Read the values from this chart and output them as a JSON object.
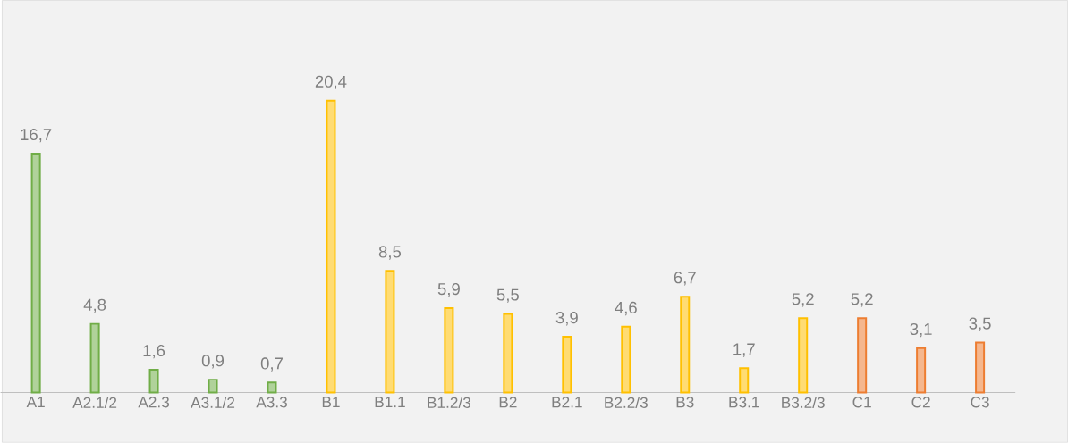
{
  "chart_data": {
    "type": "bar",
    "categories": [
      "A1",
      "A2.1/2",
      "A2.3",
      "A3.1/2",
      "A3.3",
      "B1",
      "B1.1",
      "B1.2/3",
      "B2",
      "B2.1",
      "B2.2/3",
      "B3",
      "B3.1",
      "B3.2/3",
      "C1",
      "C2",
      "C3"
    ],
    "values": [
      16.7,
      4.8,
      1.6,
      0.9,
      0.7,
      20.4,
      8.5,
      5.9,
      5.5,
      3.9,
      4.6,
      6.7,
      1.7,
      5.2,
      5.2,
      3.1,
      3.5
    ],
    "value_labels": [
      "16,7",
      "4,8",
      "1,6",
      "0,9",
      "0,7",
      "20,4",
      "8,5",
      "5,9",
      "5,5",
      "3,9",
      "4,6",
      "6,7",
      "1,7",
      "5,2",
      "5,2",
      "3,1",
      "3,5"
    ],
    "colors": [
      "#70ad47",
      "#70ad47",
      "#70ad47",
      "#70ad47",
      "#70ad47",
      "#ffc000",
      "#ffc000",
      "#ffc000",
      "#ffc000",
      "#ffc000",
      "#ffc000",
      "#ffc000",
      "#ffc000",
      "#ffc000",
      "#ed7d31",
      "#ed7d31",
      "#ed7d31"
    ]
  }
}
